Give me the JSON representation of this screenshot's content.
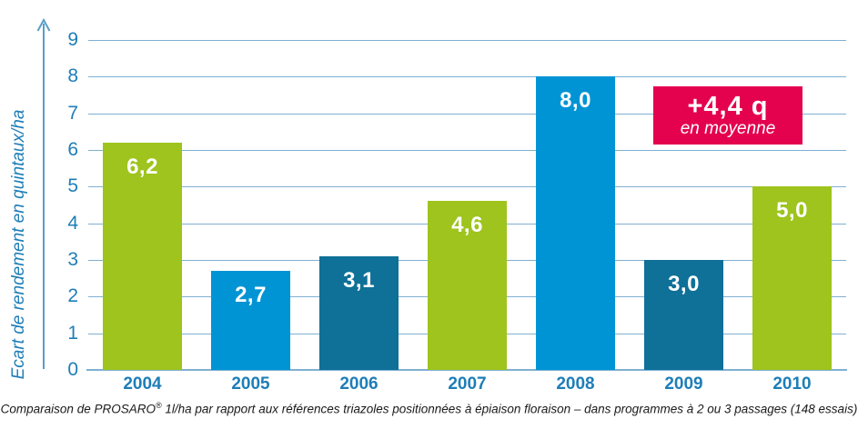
{
  "chart_data": {
    "type": "bar",
    "title": "",
    "categories": [
      "2004",
      "2005",
      "2006",
      "2007",
      "2008",
      "2009",
      "2010"
    ],
    "values": [
      6.2,
      2.7,
      3.1,
      4.6,
      8.0,
      3.0,
      5.0
    ],
    "value_labels": [
      "6,2",
      "2,7",
      "3,1",
      "4,6",
      "8,0",
      "3,0",
      "5,0"
    ],
    "bar_colors": [
      "#9EC41D",
      "#0094D5",
      "#0F7098",
      "#9EC41D",
      "#0094D5",
      "#0F7098",
      "#9EC41D"
    ],
    "xlabel": "",
    "ylabel": "Ecart de rendement en quintaux/ha",
    "ylim": [
      0,
      9
    ],
    "yticks": [
      0,
      1,
      2,
      3,
      4,
      5,
      6,
      7,
      8,
      9
    ],
    "grid": true,
    "legend": "none",
    "annotation": {
      "line1": "+4,4 q",
      "line2": "en moyenne",
      "bg_color": "#E4024F"
    }
  },
  "colors": {
    "green": "#9EC41D",
    "light_blue": "#0094D5",
    "dark_blue": "#0F7098",
    "pink": "#E4024F",
    "axis_blue": "#1E7EB8",
    "gridline": "#7FB0D2"
  },
  "caption": {
    "part1": "Comparaison de PROSARO",
    "reg": "®",
    "part2": " 1l/ha par rapport aux références triazoles positionnées à épiaison floraison – dans programmes à 2 ou 3 passages (148 essais)"
  }
}
